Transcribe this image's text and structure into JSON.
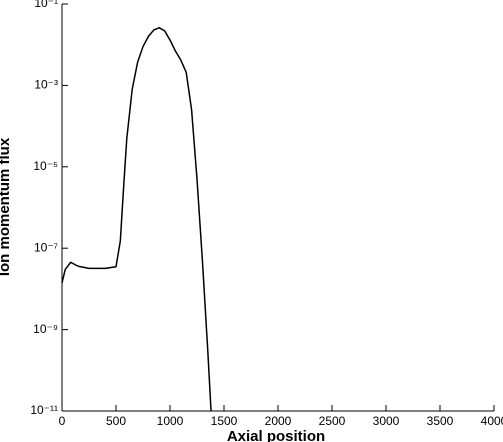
{
  "chart_data": {
    "type": "line",
    "x_label": "Axial position",
    "y_label": "Ion momentum flux",
    "log_y": true,
    "x": [
      0,
      30,
      80,
      150,
      250,
      400,
      500,
      540,
      570,
      600,
      650,
      700,
      750,
      800,
      850,
      900,
      950,
      1000,
      1050,
      1100,
      1150,
      1200,
      1250,
      1300,
      1350,
      1380
    ],
    "series": [
      {
        "color": "#000000",
        "values": [
          1.4e-08,
          3e-08,
          4.5e-08,
          3.6e-08,
          3.2e-08,
          3.2e-08,
          3.5e-08,
          1.5e-07,
          3e-06,
          5e-05,
          0.0008,
          0.0037,
          0.009,
          0.016,
          0.023,
          0.026,
          0.022,
          0.013,
          0.007,
          0.0042,
          0.0021,
          0.00025,
          5e-06,
          5e-08,
          3e-10,
          1e-11
        ]
      }
    ],
    "xlim": [
      0,
      4000
    ],
    "xticks": [
      0,
      500,
      1000,
      1500,
      2000,
      2500,
      3000,
      3500,
      4000
    ],
    "ylim": [
      1e-11,
      0.1
    ],
    "yticks": [
      {
        "value": 1e-11,
        "label": "10⁻¹¹"
      },
      {
        "value": 1e-09,
        "label": "10⁻⁹"
      },
      {
        "value": 1e-07,
        "label": "10⁻⁷"
      },
      {
        "value": 1e-05,
        "label": "10⁻⁵"
      },
      {
        "value": 0.001,
        "label": "10⁻³"
      },
      {
        "value": 0.1,
        "label": "10⁻¹"
      }
    ],
    "grid": false
  }
}
